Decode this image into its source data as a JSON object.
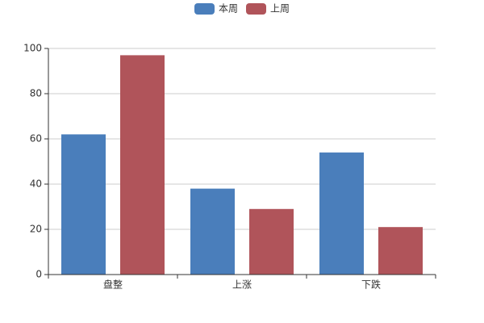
{
  "chart_data": {
    "type": "bar",
    "categories": [
      "盘整",
      "上涨",
      "下跌"
    ],
    "series": [
      {
        "name": "本周",
        "color": "#4a7ebb",
        "values": [
          62,
          38,
          54
        ]
      },
      {
        "name": "上周",
        "color": "#b0545a",
        "values": [
          97,
          29,
          21
        ]
      }
    ],
    "ylim": [
      0,
      100
    ],
    "yticks": [
      0,
      20,
      40,
      60,
      80,
      100
    ],
    "grid": true,
    "legend": "top"
  }
}
